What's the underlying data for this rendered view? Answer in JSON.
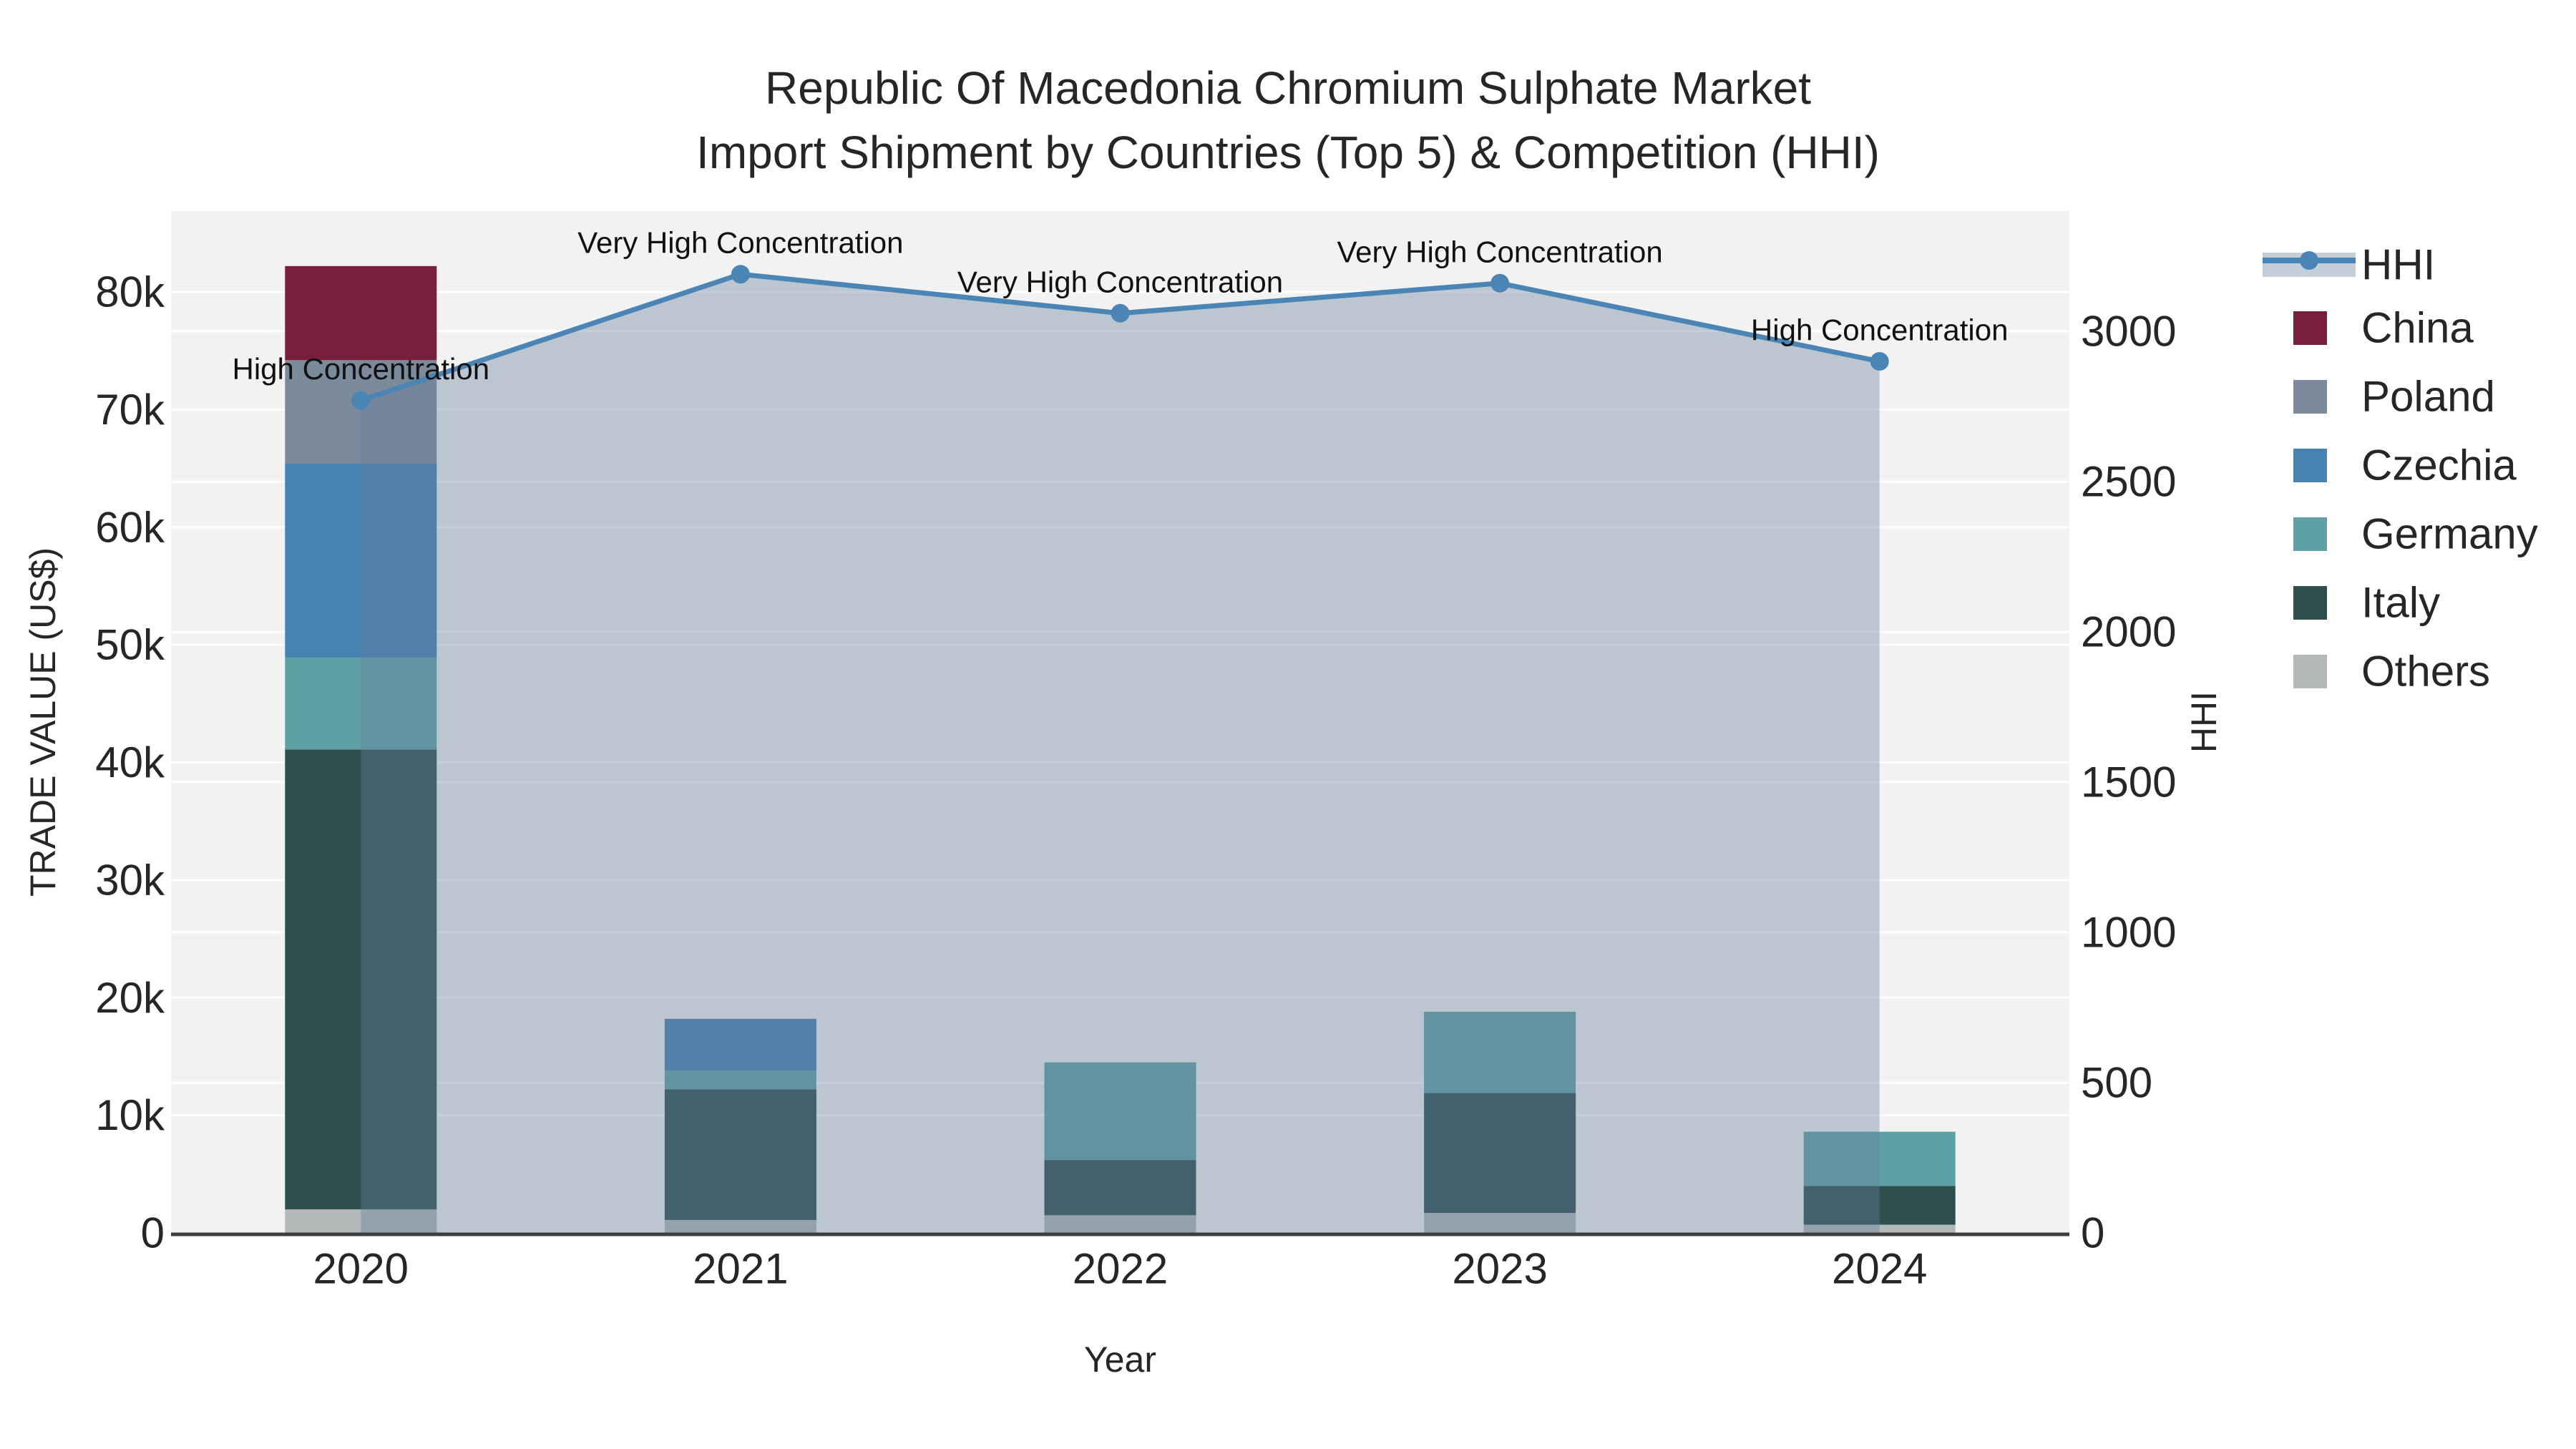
{
  "title": {
    "line1": "Republic Of Macedonia Chromium Sulphate Market",
    "line2": "Import Shipment by Countries (Top 5) & Competition (HHI)"
  },
  "chart_data": {
    "type": "bar",
    "subtype": "stacked-bars-with-line-overlay",
    "categories": [
      "2020",
      "2021",
      "2022",
      "2023",
      "2024"
    ],
    "bar_value_unit": "US$ trade value",
    "series": [
      {
        "name": "Others",
        "color": "#B3B8B8",
        "values": [
          2000,
          1100,
          1500,
          1700,
          700
        ]
      },
      {
        "name": "Italy",
        "color": "#2F4F4F",
        "values": [
          39100,
          11100,
          4700,
          10200,
          3300
        ]
      },
      {
        "name": "Germany",
        "color": "#5FA0A5",
        "values": [
          7800,
          1600,
          8300,
          6900,
          4600
        ]
      },
      {
        "name": "Czechia",
        "color": "#4682B4",
        "values": [
          16500,
          4400,
          0,
          0,
          0
        ]
      },
      {
        "name": "Poland",
        "color": "#7C8B9C",
        "values": [
          8800,
          0,
          0,
          0,
          0
        ]
      },
      {
        "name": "China",
        "color": "#7A1E3E",
        "values": [
          8000,
          0,
          0,
          0,
          0
        ]
      }
    ],
    "line": {
      "name": "HHI",
      "color": "#4A85B6",
      "fill_color": "rgba(100,125,155,0.38)",
      "values": [
        2770,
        3190,
        3060,
        3160,
        2900
      ]
    },
    "annotations": [
      {
        "category": "2020",
        "text": "High Concentration"
      },
      {
        "category": "2021",
        "text": "Very High Concentration"
      },
      {
        "category": "2022",
        "text": "Very High Concentration"
      },
      {
        "category": "2023",
        "text": "Very High Concentration"
      },
      {
        "category": "2024",
        "text": "High Concentration"
      }
    ],
    "y_left": {
      "title": "TRADE VALUE (US$)",
      "tick_labels": [
        "0",
        "10k",
        "20k",
        "30k",
        "40k",
        "50k",
        "60k",
        "70k",
        "80k"
      ],
      "tick_values": [
        0,
        10000,
        20000,
        30000,
        40000,
        50000,
        60000,
        70000,
        80000
      ],
      "range": [
        0,
        86900
      ],
      "grid": true
    },
    "y_right": {
      "title": "HHI",
      "tick_labels": [
        "0",
        "500",
        "1000",
        "1500",
        "2000",
        "2500",
        "3000"
      ],
      "tick_values": [
        0,
        500,
        1000,
        1500,
        2000,
        2500,
        3000
      ],
      "range": [
        0,
        3400
      ],
      "grid": true
    },
    "x_axis": {
      "title": "Year"
    },
    "legend": {
      "position": "right-top",
      "items": [
        "HHI",
        "China",
        "Poland",
        "Czechia",
        "Germany",
        "Italy",
        "Others"
      ]
    },
    "style": {
      "plot_bg": "#F2F2F2",
      "grid_color": "#FFFFFF",
      "axis_line_color": "#3E3E3E",
      "text_color": "#262626",
      "annotation_color": "#111111"
    }
  }
}
